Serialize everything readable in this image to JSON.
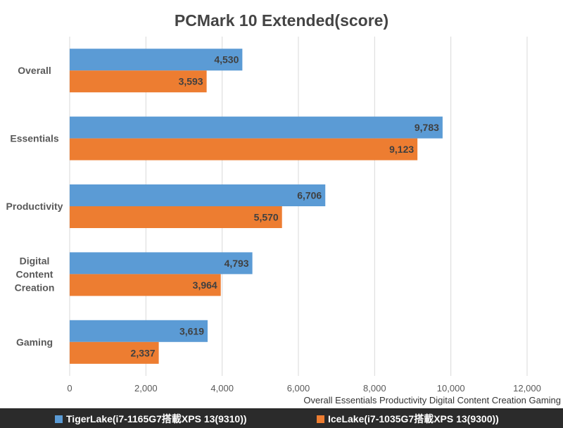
{
  "chart_data": {
    "type": "bar",
    "orientation": "horizontal",
    "title": "PCMark 10 Extended(score)",
    "categories": [
      "Overall",
      "Essentials",
      "Productivity",
      "Digital Content Creation",
      "Gaming"
    ],
    "category_lines": [
      [
        "Overall"
      ],
      [
        "Essentials"
      ],
      [
        "Productivity"
      ],
      [
        "Digital",
        "Content",
        "Creation"
      ],
      [
        "Gaming"
      ]
    ],
    "series": [
      {
        "name": "TigerLake(i7-1165G7搭載XPS 13(9310))",
        "color": "#5b9bd5",
        "values": [
          4530,
          9783,
          6706,
          4793,
          3619
        ],
        "labels": [
          "4,530",
          "9,783",
          "6,706",
          "4,793",
          "3,619"
        ]
      },
      {
        "name": "IceLake(i7-1035G7搭載XPS 13(9300))",
        "color": "#ed7d31",
        "values": [
          3593,
          9123,
          5570,
          3964,
          2337
        ],
        "labels": [
          "3,593",
          "9,123",
          "5,570",
          "3,964",
          "2,337"
        ]
      }
    ],
    "xlim": [
      0,
      12000
    ],
    "xticks": [
      0,
      2000,
      4000,
      6000,
      8000,
      10000,
      12000
    ],
    "xtick_labels": [
      "0",
      "2,000",
      "4,000",
      "6,000",
      "8,000",
      "10,000",
      "12,000"
    ],
    "axis_caption": "Overall Essentials Productivity Digital Content Creation Gaming",
    "grid": true,
    "legend_position": "bottom"
  }
}
